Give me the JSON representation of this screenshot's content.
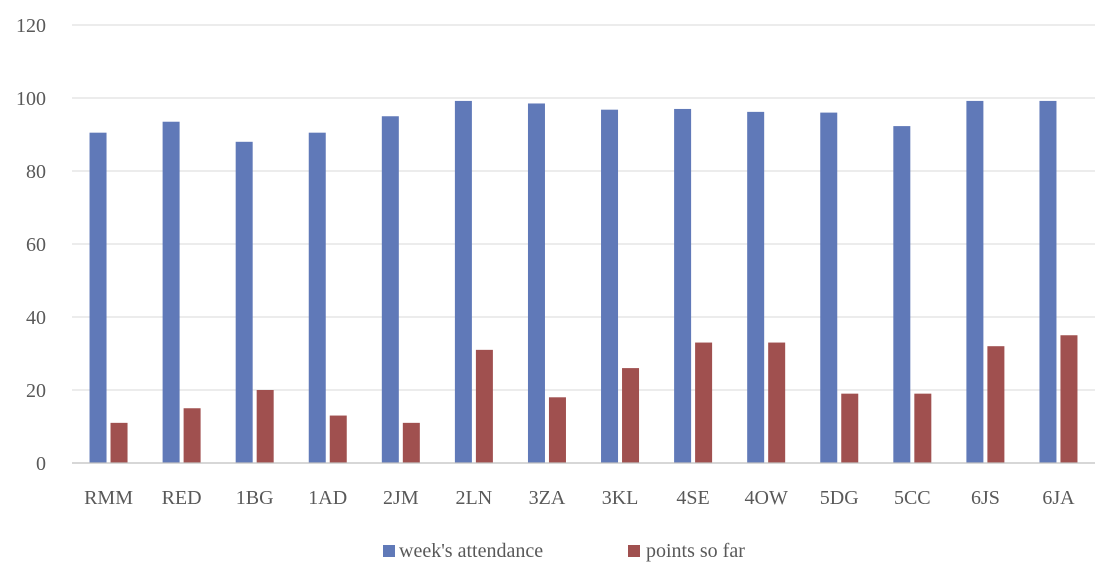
{
  "chart_data": {
    "type": "bar",
    "categories": [
      "RMM",
      "RED",
      "1BG",
      "1AD",
      "2JM",
      "2LN",
      "3ZA",
      "3KL",
      "4SE",
      "4OW",
      "5DG",
      "5CC",
      "6JS",
      "6JA"
    ],
    "series": [
      {
        "name": "week's attendance",
        "color": "#6079b8",
        "values": [
          90.5,
          93.5,
          88,
          90.5,
          95,
          99.2,
          98.5,
          96.8,
          97,
          96.2,
          96,
          92.3,
          99.2,
          99.2
        ]
      },
      {
        "name": "points so far",
        "color": "#a0504f",
        "values": [
          11,
          15,
          20,
          13,
          11,
          31,
          18,
          26,
          33,
          33,
          19,
          19,
          32,
          35
        ]
      }
    ],
    "ylim": [
      0,
      120
    ],
    "yticks": [
      0,
      20,
      40,
      60,
      80,
      100,
      120
    ],
    "grid": true,
    "legend_position": "bottom"
  }
}
